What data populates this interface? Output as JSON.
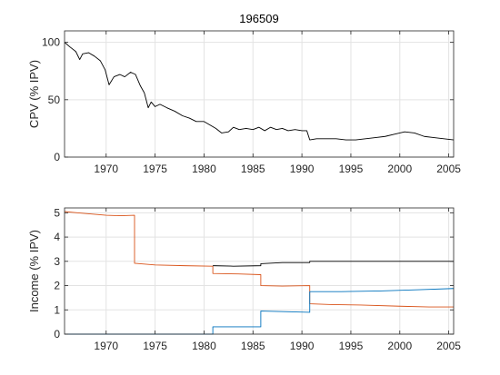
{
  "chart_data": [
    {
      "type": "line",
      "title": "196509",
      "xlabel": "",
      "ylabel": "CPV (% IPV)",
      "xlim": [
        1965.75,
        2005.5
      ],
      "ylim": [
        0,
        110
      ],
      "xticks": [
        1970,
        1975,
        1980,
        1985,
        1990,
        1995,
        2000,
        2005
      ],
      "xtick_labels": [
        "1970",
        "1975",
        "1980",
        "1985",
        "1990",
        "1995",
        "2000",
        "2005"
      ],
      "yticks": [
        0,
        50,
        100
      ],
      "ytick_labels": [
        "0",
        "50",
        "100"
      ],
      "grid": true,
      "series": [
        {
          "color": "#000000",
          "x": [
            1965.75,
            1966.3,
            1966.9,
            1967.3,
            1967.6,
            1968.2,
            1968.8,
            1969.4,
            1969.9,
            1970.3,
            1970.8,
            1971.4,
            1971.9,
            1972.5,
            1973.0,
            1973.5,
            1973.9,
            1974.3,
            1974.6,
            1975.0,
            1975.5,
            1976.2,
            1977.0,
            1977.8,
            1978.5,
            1979.2,
            1980.0,
            1980.6,
            1981.2,
            1981.8,
            1982.5,
            1983.0,
            1983.6,
            1984.3,
            1985.0,
            1985.6,
            1986.2,
            1986.8,
            1987.4,
            1988.0,
            1988.6,
            1989.3,
            1990.0,
            1990.5,
            1990.8,
            1991.5,
            1992.5,
            1993.5,
            1994.5,
            1995.5,
            1996.5,
            1997.5,
            1998.5,
            1999.5,
            2000.5,
            2001.5,
            2002.5,
            2003.5,
            2004.5,
            2005.5
          ],
          "y": [
            100,
            96,
            92,
            85,
            90,
            91,
            88,
            84,
            76,
            63,
            70,
            72,
            70,
            74,
            72,
            62,
            56,
            43,
            48,
            44,
            46,
            43,
            40,
            36,
            34,
            31,
            31,
            28,
            25,
            21,
            22,
            26,
            24,
            25,
            24,
            26,
            23,
            26,
            24,
            25,
            23,
            24,
            23,
            23,
            15,
            16,
            16,
            16,
            15,
            15,
            16,
            17,
            18,
            20,
            22,
            21,
            18,
            17,
            16,
            15
          ]
        }
      ]
    },
    {
      "type": "line",
      "title": "",
      "xlabel": "",
      "ylabel": "Income (% IPV)",
      "xlim": [
        1965.75,
        2005.5
      ],
      "ylim": [
        0,
        5.2
      ],
      "xticks": [
        1970,
        1975,
        1980,
        1985,
        1990,
        1995,
        2000,
        2005
      ],
      "xtick_labels": [
        "1970",
        "1975",
        "1980",
        "1985",
        "1990",
        "1995",
        "2000",
        "2005"
      ],
      "yticks": [
        0,
        1,
        2,
        3,
        4,
        5
      ],
      "ytick_labels": [
        "0",
        "1",
        "2",
        "3",
        "4",
        "5"
      ],
      "grid": true,
      "series": [
        {
          "color": "#D95319",
          "x": [
            1965.75,
            1967.0,
            1968.5,
            1970.0,
            1971.5,
            1972.9,
            1972.9,
            1975.0,
            1978.0,
            1980.9,
            1980.9,
            1983.5,
            1985.8,
            1985.8,
            1988.0,
            1990.8,
            1990.8,
            1993.0,
            1996.0,
            2000.0,
            2003.0,
            2005.5
          ],
          "y": [
            5.05,
            5.0,
            4.95,
            4.9,
            4.88,
            4.9,
            2.92,
            2.85,
            2.82,
            2.8,
            2.5,
            2.48,
            2.45,
            2.0,
            1.98,
            2.0,
            1.25,
            1.22,
            1.2,
            1.15,
            1.12,
            1.12
          ]
        },
        {
          "color": "#0072BD",
          "x": [
            1965.75,
            1980.9,
            1980.9,
            1985.8,
            1985.8,
            1990.8,
            1990.8,
            1994.0,
            1998.0,
            2002.0,
            2005.5
          ],
          "y": [
            0.0,
            0.0,
            0.3,
            0.3,
            0.95,
            0.9,
            1.75,
            1.75,
            1.78,
            1.83,
            1.88
          ]
        },
        {
          "color": "#000000",
          "x": [
            1980.9,
            1983.0,
            1985.8,
            1985.8,
            1988.0,
            1990.8,
            1990.8,
            1995.0,
            2000.0,
            2005.5
          ],
          "y": [
            2.82,
            2.8,
            2.82,
            2.9,
            2.95,
            2.95,
            3.0,
            3.0,
            3.0,
            3.0
          ]
        }
      ]
    }
  ]
}
